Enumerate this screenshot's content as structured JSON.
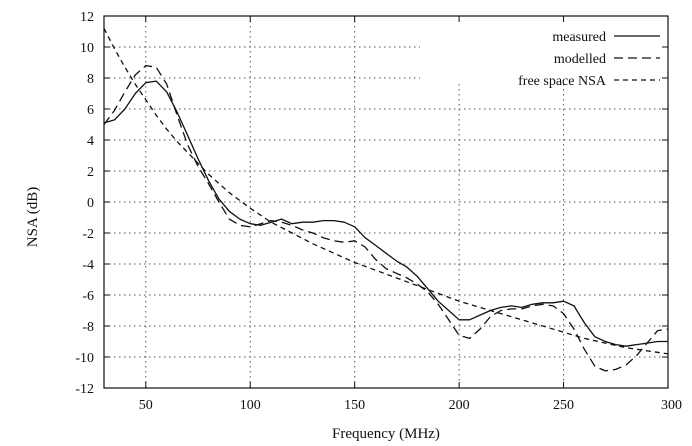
{
  "chart_data": {
    "type": "line",
    "xlabel": "Frequency (MHz)",
    "ylabel": "NSA (dB)",
    "xlim": [
      30,
      300
    ],
    "ylim": [
      -12,
      12
    ],
    "x_ticks": [
      "50",
      "100",
      "150",
      "200",
      "250",
      "300"
    ],
    "x_tick_values": [
      50,
      100,
      150,
      200,
      250,
      300
    ],
    "y_ticks": [
      "-12",
      "-10",
      "-8",
      "-6",
      "-4",
      "-2",
      "0",
      "2",
      "4",
      "6",
      "8",
      "10",
      "12"
    ],
    "y_tick_values": [
      -12,
      -10,
      -8,
      -6,
      -4,
      -2,
      0,
      2,
      4,
      6,
      8,
      10,
      12
    ],
    "grid": true,
    "legend_position": "top-right",
    "series": [
      {
        "name": "measured",
        "style": "solid",
        "x": [
          30,
          35,
          40,
          45,
          50,
          55,
          60,
          65,
          70,
          75,
          80,
          85,
          90,
          95,
          100,
          105,
          110,
          115,
          120,
          125,
          130,
          135,
          140,
          145,
          150,
          155,
          160,
          165,
          170,
          175,
          180,
          185,
          190,
          195,
          200,
          205,
          210,
          215,
          220,
          225,
          230,
          235,
          240,
          245,
          250,
          255,
          260,
          265,
          270,
          275,
          280,
          285,
          290,
          295,
          300
        ],
        "y": [
          5.1,
          5.3,
          6.0,
          7.0,
          7.7,
          7.8,
          7.1,
          5.8,
          4.3,
          2.8,
          1.4,
          0.2,
          -0.6,
          -1.1,
          -1.4,
          -1.5,
          -1.3,
          -1.1,
          -1.4,
          -1.3,
          -1.3,
          -1.2,
          -1.2,
          -1.3,
          -1.6,
          -2.3,
          -2.8,
          -3.3,
          -3.8,
          -4.2,
          -4.8,
          -5.6,
          -6.4,
          -7.0,
          -7.6,
          -7.6,
          -7.3,
          -7.0,
          -6.8,
          -6.7,
          -6.8,
          -6.6,
          -6.5,
          -6.5,
          -6.4,
          -6.7,
          -7.8,
          -8.7,
          -9.0,
          -9.2,
          -9.3,
          -9.2,
          -9.1,
          -9.0,
          -9.0
        ]
      },
      {
        "name": "modelled",
        "style": "dashed",
        "x": [
          30,
          35,
          40,
          45,
          50,
          55,
          60,
          65,
          70,
          75,
          80,
          85,
          90,
          95,
          100,
          105,
          110,
          115,
          120,
          125,
          130,
          135,
          140,
          145,
          150,
          155,
          160,
          165,
          170,
          175,
          180,
          185,
          190,
          195,
          200,
          205,
          210,
          215,
          220,
          225,
          230,
          235,
          240,
          245,
          250,
          255,
          260,
          265,
          270,
          275,
          280,
          285,
          290,
          295,
          300
        ],
        "y": [
          5.0,
          5.9,
          7.1,
          8.2,
          8.8,
          8.7,
          7.6,
          5.6,
          3.7,
          2.3,
          1.2,
          0.0,
          -1.1,
          -1.5,
          -1.6,
          -1.4,
          -1.2,
          -1.3,
          -1.5,
          -1.8,
          -2.0,
          -2.3,
          -2.5,
          -2.6,
          -2.5,
          -2.9,
          -3.7,
          -4.3,
          -4.6,
          -4.9,
          -5.3,
          -5.8,
          -6.6,
          -7.6,
          -8.6,
          -8.8,
          -8.2,
          -7.4,
          -7.0,
          -6.9,
          -6.9,
          -6.7,
          -6.6,
          -6.7,
          -7.2,
          -8.2,
          -9.5,
          -10.6,
          -10.9,
          -10.8,
          -10.5,
          -9.9,
          -9.1,
          -8.3,
          -8.2
        ]
      },
      {
        "name": "free space NSA",
        "style": "short-dashed",
        "x": [
          30,
          35,
          40,
          45,
          50,
          55,
          60,
          65,
          70,
          75,
          80,
          90,
          100,
          110,
          120,
          130,
          140,
          150,
          160,
          170,
          180,
          190,
          200,
          210,
          220,
          230,
          240,
          250,
          260,
          270,
          280,
          290,
          300
        ],
        "y": [
          11.2,
          9.9,
          8.7,
          7.6,
          6.6,
          5.6,
          4.7,
          3.9,
          3.2,
          2.5,
          1.8,
          0.6,
          -0.4,
          -1.3,
          -2.0,
          -2.7,
          -3.3,
          -3.9,
          -4.4,
          -4.9,
          -5.4,
          -5.9,
          -6.4,
          -6.8,
          -7.2,
          -7.6,
          -8.0,
          -8.4,
          -8.8,
          -9.1,
          -9.4,
          -9.6,
          -9.8
        ]
      }
    ]
  }
}
